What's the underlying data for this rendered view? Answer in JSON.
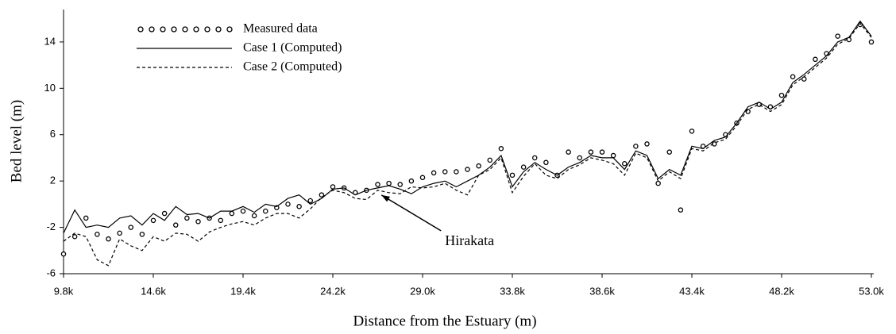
{
  "chart_data": {
    "type": "line",
    "x_label": "Distance from the Estuary (m)",
    "y_label": "Bed level (m)",
    "x": [
      9800,
      10400,
      11000,
      11600,
      12200,
      12800,
      13400,
      14000,
      14600,
      15200,
      15800,
      16400,
      17000,
      17600,
      18200,
      18800,
      19400,
      20000,
      20600,
      21200,
      21800,
      22400,
      23000,
      23600,
      24200,
      24800,
      25400,
      26000,
      26600,
      27200,
      27800,
      28400,
      29000,
      29600,
      30200,
      30800,
      31400,
      32000,
      32600,
      33200,
      33800,
      34400,
      35000,
      35600,
      36200,
      36800,
      37400,
      38000,
      38600,
      39200,
      39800,
      40400,
      41000,
      41600,
      42200,
      42800,
      43400,
      44000,
      44600,
      45200,
      45800,
      46400,
      47000,
      47600,
      48200,
      48800,
      49400,
      50000,
      50600,
      51200,
      51800,
      52400,
      53000
    ],
    "series": [
      {
        "name": "Measured data",
        "color": "#000000",
        "style": "marker",
        "values": [
          -4.3,
          -2.8,
          -1.2,
          -2.6,
          -3.0,
          -2.5,
          -2.0,
          -2.6,
          -1.4,
          -0.8,
          -1.8,
          -1.2,
          -1.5,
          -1.2,
          -1.4,
          -0.8,
          -0.6,
          -1.0,
          -0.6,
          -0.3,
          0.0,
          -0.2,
          0.3,
          0.8,
          1.5,
          1.4,
          1.0,
          1.2,
          1.7,
          1.8,
          1.7,
          2.0,
          2.3,
          2.7,
          2.8,
          2.8,
          3.0,
          3.3,
          3.8,
          4.8,
          2.5,
          3.2,
          4.0,
          3.6,
          2.5,
          4.5,
          4.0,
          4.5,
          4.5,
          4.2,
          3.5,
          5.0,
          5.2,
          1.8,
          4.5,
          -0.5,
          6.3,
          5.0,
          5.2,
          6.0,
          7.0,
          8.0,
          8.6,
          8.4,
          9.4,
          11.0,
          10.8,
          12.5,
          13.0,
          14.5,
          14.2,
          15.5,
          14.0
        ]
      },
      {
        "name": "Case 1 (Computed)",
        "color": "#000000",
        "style": "solid",
        "values": [
          -2.5,
          -0.5,
          -2.0,
          -1.8,
          -2.0,
          -1.2,
          -1.0,
          -1.8,
          -0.8,
          -1.4,
          -0.2,
          -0.9,
          -0.8,
          -1.2,
          -0.6,
          -0.6,
          -0.2,
          -0.7,
          0.0,
          -0.2,
          0.5,
          0.8,
          0.0,
          0.5,
          1.3,
          1.4,
          0.8,
          1.2,
          1.4,
          1.6,
          1.3,
          0.9,
          1.5,
          1.8,
          2.0,
          1.5,
          2.0,
          2.5,
          3.2,
          4.2,
          1.5,
          2.8,
          3.6,
          3.0,
          2.5,
          3.2,
          3.6,
          4.2,
          4.0,
          4.0,
          3.0,
          4.6,
          4.2,
          2.2,
          3.0,
          2.5,
          5.0,
          4.8,
          5.5,
          5.8,
          7.0,
          8.4,
          8.8,
          8.2,
          8.8,
          10.5,
          11.2,
          12.0,
          12.8,
          14.0,
          14.4,
          15.8,
          14.5
        ]
      },
      {
        "name": "Case 2 (Computed)",
        "color": "#000000",
        "style": "dashed",
        "values": [
          -3.2,
          -2.5,
          -2.8,
          -4.8,
          -5.3,
          -3.0,
          -3.6,
          -4.0,
          -2.8,
          -3.2,
          -2.5,
          -2.6,
          -3.2,
          -2.4,
          -2.0,
          -1.7,
          -1.5,
          -1.8,
          -1.2,
          -0.8,
          -0.8,
          -1.2,
          -0.4,
          0.6,
          1.2,
          1.0,
          0.5,
          0.4,
          1.2,
          1.0,
          0.9,
          1.5,
          1.4,
          1.5,
          1.8,
          1.2,
          0.8,
          2.5,
          3.0,
          4.0,
          1.0,
          2.4,
          3.5,
          2.5,
          2.2,
          3.0,
          3.4,
          4.0,
          3.8,
          3.5,
          2.5,
          4.4,
          4.0,
          2.0,
          2.8,
          2.2,
          4.8,
          4.6,
          5.3,
          5.6,
          6.8,
          8.2,
          8.6,
          8.0,
          8.6,
          10.3,
          11.0,
          11.8,
          12.6,
          13.8,
          14.3,
          15.6,
          14.4
        ]
      }
    ],
    "xlim": [
      9800,
      53000
    ],
    "ylim": [
      -6,
      16.8
    ],
    "xticks": [
      {
        "value": 9800,
        "label": "9.8k"
      },
      {
        "value": 14600,
        "label": "14.6k"
      },
      {
        "value": 19400,
        "label": "19.4k"
      },
      {
        "value": 24200,
        "label": "24.2k"
      },
      {
        "value": 29000,
        "label": "29.0k"
      },
      {
        "value": 33800,
        "label": "33.8k"
      },
      {
        "value": 38600,
        "label": "38.6k"
      },
      {
        "value": 43400,
        "label": "43.4k"
      },
      {
        "value": 48200,
        "label": "48.2k"
      },
      {
        "value": 53000,
        "label": "53.0k"
      }
    ],
    "yticks": [
      -6,
      -2,
      2,
      6,
      10,
      14
    ],
    "legend": "upper left",
    "annotations": [
      {
        "text": "Hirakata",
        "x": 26800,
        "y": 1.2
      }
    ]
  }
}
